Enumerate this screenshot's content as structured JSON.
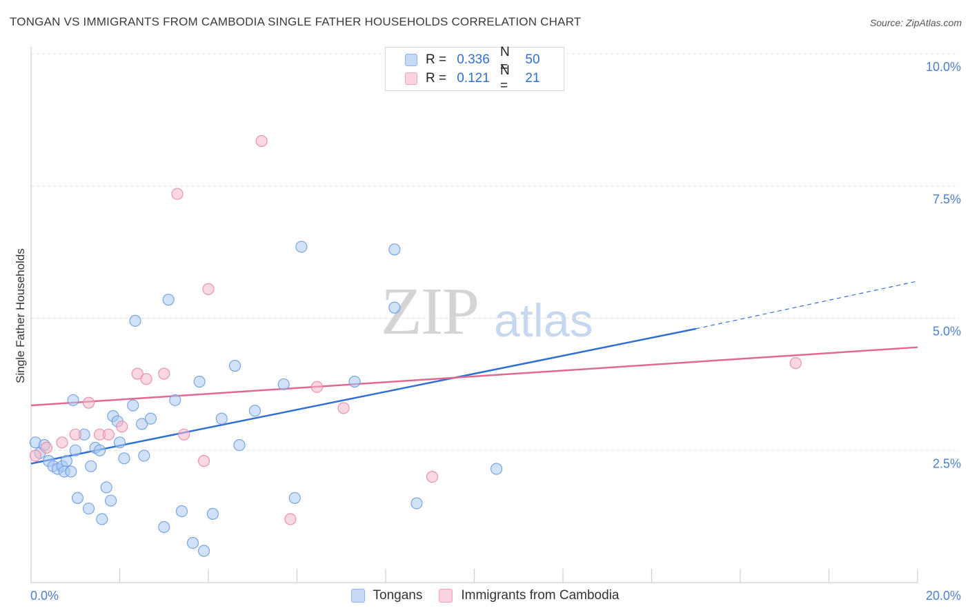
{
  "header": {
    "title": "TONGAN VS IMMIGRANTS FROM CAMBODIA SINGLE FATHER HOUSEHOLDS CORRELATION CHART",
    "source": "Source: ZipAtlas.com"
  },
  "watermark": {
    "zip": "ZIP",
    "atlas": "atlas"
  },
  "legend": {
    "rows": [
      {
        "r_label": "R =",
        "r_value": "0.336",
        "n_label": "N =",
        "n_value": "50",
        "color": "#a9c8f2"
      },
      {
        "r_label": "R =",
        "r_value": "0.121",
        "n_label": "N =",
        "n_value": "21",
        "color": "#f6b8cb"
      }
    ]
  },
  "bottom_legend": [
    {
      "label": "Tongans",
      "color": "#a9c8f2"
    },
    {
      "label": "Immigrants from Cambodia",
      "color": "#f6b8cb"
    }
  ],
  "chart_data": {
    "type": "scatter",
    "title": "TONGAN VS IMMIGRANTS FROM CAMBODIA SINGLE FATHER HOUSEHOLDS CORRELATION CHART",
    "xlabel": "",
    "ylabel": "Single Father Households",
    "xlim": [
      0,
      20
    ],
    "ylim": [
      0,
      10
    ],
    "x_tick_labels": [
      {
        "value": 0,
        "label": "0.0%"
      },
      {
        "value": 20,
        "label": "20.0%"
      }
    ],
    "y_tick_labels": [
      {
        "value": 2.5,
        "label": "2.5%"
      },
      {
        "value": 5.0,
        "label": "5.0%"
      },
      {
        "value": 7.5,
        "label": "7.5%"
      },
      {
        "value": 10.0,
        "label": "10.0%"
      }
    ],
    "grid": true,
    "legend_position": "top-center",
    "series": [
      {
        "name": "Tongans",
        "color": "#a9c8f2",
        "stroke": "#6f9fe0",
        "line_color": "#2f6fd1",
        "trend": {
          "x0": 0,
          "y0": 2.25,
          "x1": 15.0,
          "y1": 4.8,
          "dashed_to_x": 20,
          "dashed_to_y": 5.7
        },
        "points": [
          [
            0.1,
            2.65
          ],
          [
            0.2,
            2.45
          ],
          [
            0.3,
            2.6
          ],
          [
            0.4,
            2.3
          ],
          [
            0.5,
            2.2
          ],
          [
            0.6,
            2.15
          ],
          [
            0.7,
            2.2
          ],
          [
            0.75,
            2.1
          ],
          [
            0.8,
            2.3
          ],
          [
            0.9,
            2.1
          ],
          [
            0.95,
            3.45
          ],
          [
            1.0,
            2.5
          ],
          [
            1.05,
            1.6
          ],
          [
            1.2,
            2.8
          ],
          [
            1.3,
            1.4
          ],
          [
            1.35,
            2.2
          ],
          [
            1.45,
            2.55
          ],
          [
            1.55,
            2.5
          ],
          [
            1.6,
            1.2
          ],
          [
            1.7,
            1.8
          ],
          [
            1.8,
            1.55
          ],
          [
            1.85,
            3.15
          ],
          [
            1.95,
            3.05
          ],
          [
            2.0,
            2.65
          ],
          [
            2.1,
            2.35
          ],
          [
            2.3,
            3.35
          ],
          [
            2.35,
            4.95
          ],
          [
            2.5,
            3.0
          ],
          [
            2.55,
            2.4
          ],
          [
            2.7,
            3.1
          ],
          [
            3.0,
            1.05
          ],
          [
            3.1,
            5.35
          ],
          [
            3.25,
            3.45
          ],
          [
            3.4,
            1.35
          ],
          [
            3.65,
            0.75
          ],
          [
            3.8,
            3.8
          ],
          [
            3.9,
            0.6
          ],
          [
            4.1,
            1.3
          ],
          [
            4.3,
            3.1
          ],
          [
            4.6,
            4.1
          ],
          [
            4.7,
            2.6
          ],
          [
            5.05,
            3.25
          ],
          [
            5.7,
            3.75
          ],
          [
            5.95,
            1.6
          ],
          [
            6.1,
            6.35
          ],
          [
            7.3,
            3.8
          ],
          [
            8.2,
            6.3
          ],
          [
            8.2,
            5.2
          ],
          [
            8.7,
            1.5
          ],
          [
            10.5,
            2.15
          ]
        ]
      },
      {
        "name": "Immigrants from Cambodia",
        "color": "#f6b8cb",
        "stroke": "#e98aa8",
        "line_color": "#e0698f",
        "trend": {
          "x0": 0,
          "y0": 3.35,
          "x1": 20,
          "y1": 4.45
        },
        "points": [
          [
            0.1,
            2.4
          ],
          [
            0.35,
            2.55
          ],
          [
            0.7,
            2.65
          ],
          [
            1.0,
            2.8
          ],
          [
            1.3,
            3.4
          ],
          [
            1.55,
            2.8
          ],
          [
            1.75,
            2.8
          ],
          [
            2.05,
            2.95
          ],
          [
            2.4,
            3.95
          ],
          [
            2.6,
            3.85
          ],
          [
            3.0,
            3.95
          ],
          [
            3.3,
            7.35
          ],
          [
            3.45,
            2.8
          ],
          [
            3.9,
            2.3
          ],
          [
            4.0,
            5.55
          ],
          [
            5.2,
            8.35
          ],
          [
            5.85,
            1.2
          ],
          [
            6.45,
            3.7
          ],
          [
            7.05,
            3.3
          ],
          [
            9.05,
            2.0
          ],
          [
            17.25,
            4.15
          ]
        ]
      }
    ]
  }
}
